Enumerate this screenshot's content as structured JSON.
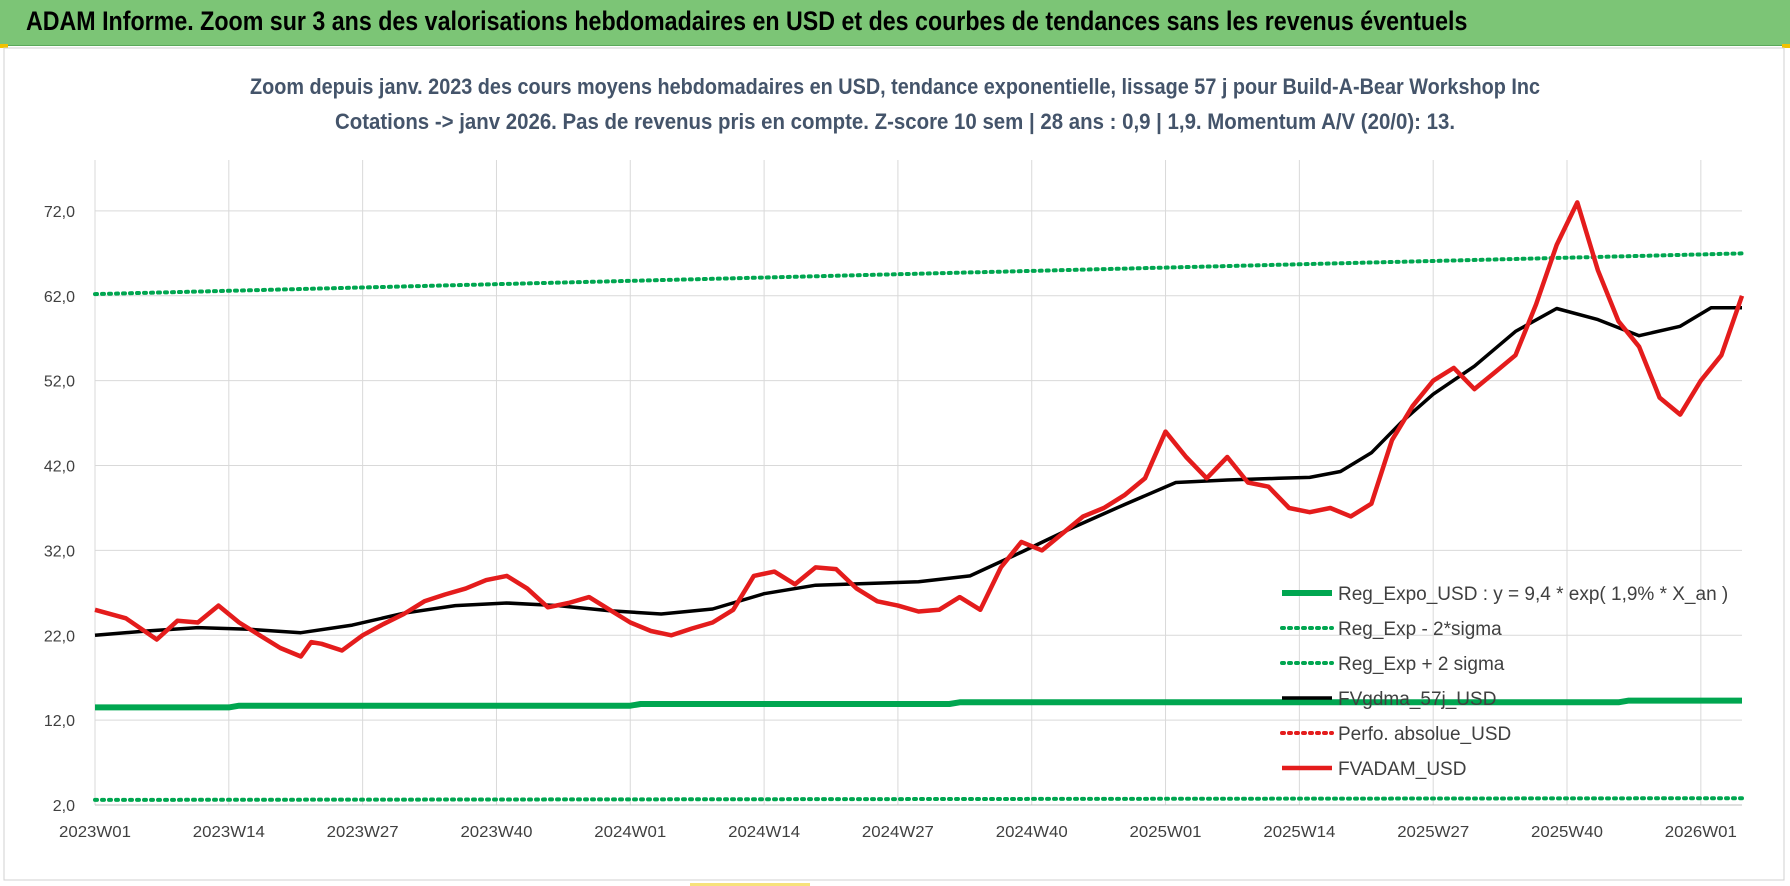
{
  "banner": {
    "title": "ADAM Informe. Zoom sur 3 ans des valorisations hebdomadaires en USD et des courbes de tendances sans les revenus éventuels"
  },
  "colors": {
    "banner_bg": "#7cc576",
    "reg_expo": "#00a650",
    "reg_sigma": "#00a650",
    "fvgdma": "#000000",
    "perfo": "#e41c1c",
    "fvadam": "#e41c1c",
    "grid": "#d9d9d9",
    "title_text": "#44546a"
  },
  "chart_data": {
    "type": "line",
    "title": "Zoom depuis janv. 2023 des cours moyens hebdomadaires en USD, tendance exponentielle, lissage 57 j pour Build-A-Bear Workshop Inc",
    "subtitle": "Cotations -> janv 2026. Pas de revenus pris en compte. Z-score 10 sem | 28 ans : 0,9 | 1,9. Momentum A/V (20/0): 13.",
    "xlabel": "",
    "ylabel": "",
    "ylim": [
      2.0,
      78.0
    ],
    "xlim": [
      0,
      160
    ],
    "yticks": [
      "2,0",
      "12,0",
      "22,0",
      "32,0",
      "42,0",
      "52,0",
      "62,0",
      "72,0"
    ],
    "ytick_values": [
      2,
      12,
      22,
      32,
      42,
      52,
      62,
      72
    ],
    "xticks": [
      "2023W01",
      "2023W14",
      "2023W27",
      "2023W40",
      "2024W01",
      "2024W14",
      "2024W27",
      "2024W40",
      "2025W01",
      "2025W14",
      "2025W27",
      "2025W40",
      "2026W01"
    ],
    "xtick_positions": [
      0,
      13,
      26,
      39,
      52,
      65,
      78,
      91,
      104,
      117,
      130,
      143,
      156
    ],
    "grid": true,
    "legend_placement": "bottom-right",
    "series": [
      {
        "name": "Reg_Expo_USD : y = 9,4 * exp( 1,9% *  X_an )",
        "style": "solid-thick",
        "color": "#00a650",
        "x": [
          0,
          13,
          14,
          52,
          53,
          83,
          84,
          148,
          149,
          160
        ],
        "y": [
          13.5,
          13.5,
          13.7,
          13.7,
          13.9,
          13.9,
          14.1,
          14.1,
          14.3,
          14.3
        ]
      },
      {
        "name": "Reg_Exp - 2*sigma",
        "style": "dotted",
        "color": "#00a650",
        "x": [
          0,
          160
        ],
        "y": [
          2.6,
          2.8
        ]
      },
      {
        "name": "Reg_Exp + 2 sigma",
        "style": "dotted",
        "color": "#00a650",
        "x": [
          0,
          40,
          80,
          120,
          160
        ],
        "y": [
          62.2,
          63.4,
          64.6,
          65.8,
          67.0
        ]
      },
      {
        "name": "FVgdma_57j_USD",
        "style": "solid",
        "color": "#000000",
        "x": [
          0,
          5,
          10,
          15,
          20,
          25,
          30,
          35,
          40,
          45,
          50,
          55,
          60,
          65,
          70,
          75,
          80,
          85,
          90,
          95,
          100,
          105,
          110,
          115,
          118,
          121,
          124,
          127,
          130,
          134,
          138,
          142,
          146,
          150,
          154,
          157,
          160
        ],
        "y": [
          22.0,
          22.5,
          22.9,
          22.7,
          22.3,
          23.2,
          24.6,
          25.5,
          25.8,
          25.5,
          24.9,
          24.5,
          25.1,
          26.9,
          27.9,
          28.1,
          28.3,
          29.0,
          31.8,
          34.7,
          37.4,
          40.0,
          40.3,
          40.5,
          40.6,
          41.3,
          43.5,
          47.2,
          50.4,
          53.7,
          57.8,
          60.5,
          59.2,
          57.3,
          58.4,
          60.6,
          60.6
        ]
      },
      {
        "name": "Perfo. absolue_USD",
        "style": "dotted",
        "color": "#e41c1c",
        "x": [],
        "y": []
      },
      {
        "name": "FVADAM_USD",
        "style": "solid-thick",
        "color": "#e41c1c",
        "x": [
          0,
          3,
          6,
          8,
          10,
          12,
          14,
          16,
          18,
          20,
          21,
          22,
          24,
          26,
          28,
          30,
          32,
          34,
          36,
          38,
          40,
          42,
          44,
          46,
          48,
          50,
          52,
          54,
          56,
          58,
          60,
          62,
          64,
          66,
          68,
          70,
          72,
          74,
          76,
          78,
          80,
          82,
          84,
          86,
          88,
          90,
          92,
          94,
          96,
          98,
          100,
          102,
          104,
          106,
          108,
          110,
          112,
          114,
          116,
          118,
          120,
          122,
          124,
          126,
          128,
          130,
          132,
          134,
          136,
          138,
          140,
          142,
          144,
          146,
          148,
          150,
          152,
          154,
          156,
          158,
          160
        ],
        "y": [
          25.0,
          24.0,
          21.5,
          23.7,
          23.5,
          25.5,
          23.5,
          22.0,
          20.5,
          19.5,
          21.2,
          21.0,
          20.2,
          22.0,
          23.3,
          24.5,
          26.0,
          26.8,
          27.5,
          28.5,
          29.0,
          27.5,
          25.3,
          25.8,
          26.5,
          25.0,
          23.5,
          22.5,
          22.0,
          22.8,
          23.5,
          25.0,
          29.0,
          29.5,
          28.0,
          30.0,
          29.8,
          27.5,
          26.0,
          25.5,
          24.8,
          25.0,
          26.5,
          25.0,
          30.0,
          33.0,
          32.0,
          34.0,
          36.0,
          37.0,
          38.5,
          40.5,
          46.0,
          43.0,
          40.5,
          43.0,
          40.0,
          39.5,
          37.0,
          36.5,
          37.0,
          36.0,
          37.5,
          45.0,
          49.0,
          52.0,
          53.5,
          51.0,
          53.0,
          55.0,
          61.0,
          68.0,
          73.0,
          65.0,
          59.0,
          56.0,
          50.0,
          48.0,
          52.0,
          55.0,
          62.0
        ]
      }
    ]
  }
}
